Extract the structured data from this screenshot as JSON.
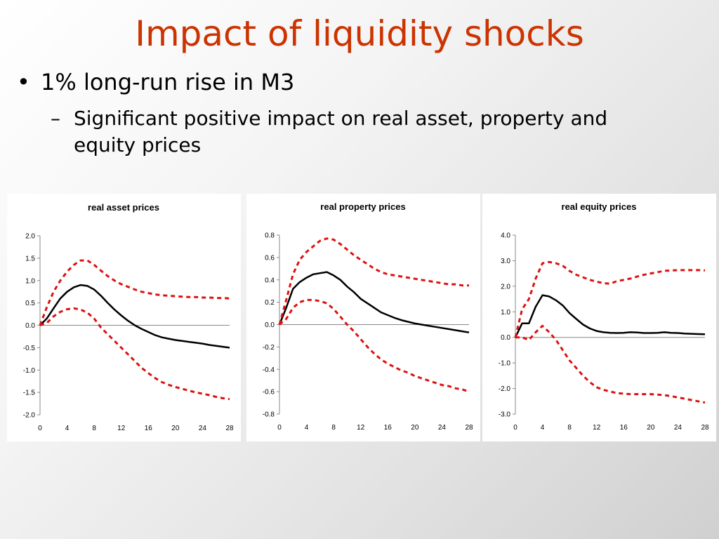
{
  "slide": {
    "title": "Impact of liquidity shocks",
    "bullet": "1% long-run rise in M3",
    "sub_bullet": "Significant positive impact on real asset, property and equity prices"
  },
  "colors": {
    "title": "#cc3300",
    "response": "#000000",
    "bands": "#dd1111"
  },
  "chart_data": [
    {
      "type": "line",
      "title": "real asset prices",
      "x_ticks": [
        0,
        4,
        8,
        12,
        16,
        20,
        24,
        28
      ],
      "xlim": [
        0,
        28
      ],
      "y_ticks": [
        2.0,
        1.5,
        1.0,
        0.5,
        0.0,
        -0.5,
        -1.0,
        -1.5,
        -2.0
      ],
      "ylim": [
        -2.0,
        2.0
      ],
      "x": [
        0,
        1,
        2,
        3,
        4,
        5,
        6,
        7,
        8,
        9,
        10,
        11,
        12,
        13,
        14,
        15,
        16,
        17,
        18,
        19,
        20,
        21,
        22,
        23,
        24,
        25,
        26,
        27,
        28
      ],
      "series": [
        {
          "style": "solid",
          "values": [
            0,
            0.15,
            0.38,
            0.6,
            0.75,
            0.85,
            0.9,
            0.88,
            0.8,
            0.66,
            0.5,
            0.35,
            0.22,
            0.1,
            0,
            -0.08,
            -0.15,
            -0.22,
            -0.27,
            -0.3,
            -0.33,
            -0.35,
            -0.37,
            -0.39,
            -0.41,
            -0.44,
            -0.46,
            -0.48,
            -0.5
          ]
        },
        {
          "style": "dashed",
          "values": [
            0,
            0.4,
            0.75,
            1.0,
            1.2,
            1.35,
            1.45,
            1.45,
            1.35,
            1.22,
            1.1,
            1.0,
            0.92,
            0.86,
            0.8,
            0.75,
            0.72,
            0.69,
            0.67,
            0.66,
            0.65,
            0.64,
            0.63,
            0.63,
            0.62,
            0.62,
            0.61,
            0.61,
            0.6
          ]
        },
        {
          "style": "dashed",
          "values": [
            0,
            0.05,
            0.2,
            0.3,
            0.36,
            0.38,
            0.35,
            0.28,
            0.15,
            -0.05,
            -0.2,
            -0.35,
            -0.5,
            -0.65,
            -0.8,
            -0.95,
            -1.07,
            -1.18,
            -1.27,
            -1.33,
            -1.38,
            -1.42,
            -1.46,
            -1.5,
            -1.53,
            -1.56,
            -1.6,
            -1.63,
            -1.65
          ]
        }
      ]
    },
    {
      "type": "line",
      "title": "real property prices",
      "x_ticks": [
        0,
        4,
        8,
        12,
        16,
        20,
        24,
        28
      ],
      "xlim": [
        0,
        28
      ],
      "y_ticks": [
        0.8,
        0.6,
        0.4,
        0.2,
        0.0,
        -0.2,
        -0.4,
        -0.6,
        -0.8
      ],
      "ylim": [
        -0.8,
        0.8
      ],
      "x": [
        0,
        1,
        2,
        3,
        4,
        5,
        6,
        7,
        8,
        9,
        10,
        11,
        12,
        13,
        14,
        15,
        16,
        17,
        18,
        19,
        20,
        21,
        22,
        23,
        24,
        25,
        26,
        27,
        28
      ],
      "series": [
        {
          "style": "solid",
          "values": [
            0,
            0.15,
            0.32,
            0.38,
            0.42,
            0.45,
            0.46,
            0.47,
            0.44,
            0.4,
            0.34,
            0.29,
            0.23,
            0.19,
            0.15,
            0.11,
            0.085,
            0.06,
            0.04,
            0.025,
            0.01,
            0,
            -0.01,
            -0.02,
            -0.03,
            -0.04,
            -0.05,
            -0.06,
            -0.07
          ]
        },
        {
          "style": "dashed",
          "values": [
            0,
            0.22,
            0.45,
            0.58,
            0.65,
            0.7,
            0.75,
            0.77,
            0.76,
            0.72,
            0.67,
            0.62,
            0.58,
            0.54,
            0.5,
            0.47,
            0.45,
            0.44,
            0.43,
            0.42,
            0.41,
            0.4,
            0.39,
            0.38,
            0.37,
            0.36,
            0.36,
            0.35,
            0.35
          ]
        },
        {
          "style": "dashed",
          "values": [
            0,
            0.05,
            0.15,
            0.2,
            0.22,
            0.22,
            0.21,
            0.19,
            0.14,
            0.07,
            0,
            -0.06,
            -0.13,
            -0.2,
            -0.26,
            -0.31,
            -0.35,
            -0.38,
            -0.41,
            -0.43,
            -0.46,
            -0.48,
            -0.5,
            -0.52,
            -0.54,
            -0.55,
            -0.57,
            -0.58,
            -0.6
          ]
        }
      ]
    },
    {
      "type": "line",
      "title": "real equity prices",
      "x_ticks": [
        0,
        4,
        8,
        12,
        16,
        20,
        24,
        28
      ],
      "xlim": [
        0,
        28
      ],
      "y_ticks": [
        4.0,
        3.0,
        2.0,
        1.0,
        0.0,
        -1.0,
        -2.0,
        -3.0
      ],
      "ylim": [
        -3.0,
        4.0
      ],
      "x": [
        0,
        1,
        2,
        3,
        4,
        5,
        6,
        7,
        8,
        9,
        10,
        11,
        12,
        13,
        14,
        15,
        16,
        17,
        18,
        19,
        20,
        21,
        22,
        23,
        24,
        25,
        26,
        27,
        28
      ],
      "series": [
        {
          "style": "solid",
          "values": [
            0,
            0.55,
            0.55,
            1.2,
            1.65,
            1.6,
            1.45,
            1.25,
            0.95,
            0.72,
            0.5,
            0.35,
            0.25,
            0.2,
            0.18,
            0.17,
            0.18,
            0.2,
            0.19,
            0.17,
            0.17,
            0.18,
            0.2,
            0.18,
            0.17,
            0.15,
            0.14,
            0.13,
            0.12
          ]
        },
        {
          "style": "dashed",
          "values": [
            0,
            1.1,
            1.5,
            2.3,
            2.9,
            2.95,
            2.9,
            2.8,
            2.6,
            2.45,
            2.35,
            2.25,
            2.18,
            2.12,
            2.1,
            2.2,
            2.25,
            2.3,
            2.38,
            2.45,
            2.5,
            2.55,
            2.6,
            2.62,
            2.63,
            2.63,
            2.63,
            2.63,
            2.62
          ]
        },
        {
          "style": "dashed",
          "values": [
            0,
            0,
            -0.1,
            0.2,
            0.45,
            0.2,
            -0.1,
            -0.5,
            -0.9,
            -1.2,
            -1.5,
            -1.75,
            -1.95,
            -2.05,
            -2.12,
            -2.18,
            -2.2,
            -2.22,
            -2.22,
            -2.22,
            -2.22,
            -2.24,
            -2.26,
            -2.3,
            -2.35,
            -2.4,
            -2.45,
            -2.5,
            -2.55
          ]
        }
      ]
    }
  ]
}
